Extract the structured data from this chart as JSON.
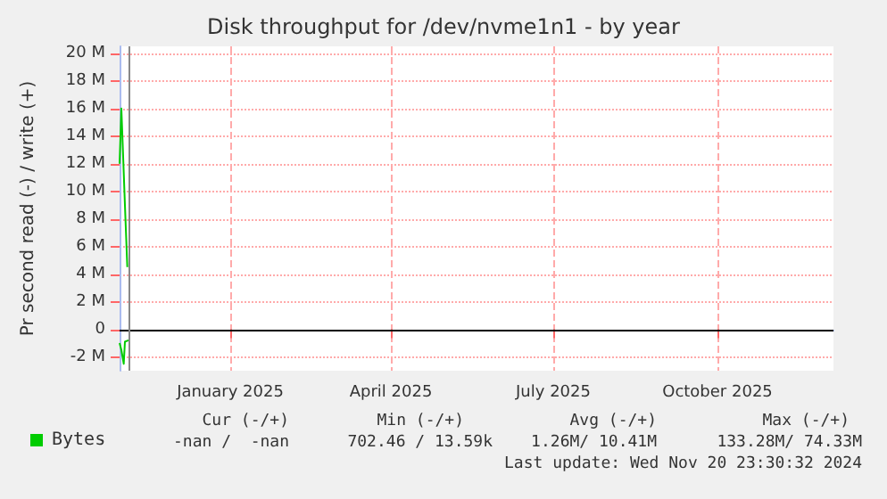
{
  "chart_data": {
    "type": "line",
    "title": "Disk throughput for /dev/nvme1n1 - by year",
    "ylabel": "Pr second read (-) / write (+)",
    "series": [
      {
        "name": "Bytes",
        "color": "#00cc00",
        "x": [
          "2024-10-31T00:00",
          "2024-11-01T00:00",
          "2024-11-03T00:00",
          "2024-11-04T08:00"
        ],
        "values": [
          12,
          16,
          9,
          4.5
        ]
      },
      {
        "color": "#00cc00",
        "x": [
          "2024-10-31T00:00",
          "2024-11-01T00:00",
          "2024-11-02T08:00",
          "2024-11-03T00:00",
          "2024-11-05T00:00"
        ],
        "values": [
          -1,
          -1.5,
          -2.5,
          -0.9,
          -0.8
        ]
      }
    ],
    "xlim": [
      "2024-10-31",
      "2025-12-05"
    ],
    "xticks": [
      {
        "value": "2025-01-01",
        "label": "January 2025"
      },
      {
        "value": "2025-04-01",
        "label": "April 2025"
      },
      {
        "value": "2025-07-01",
        "label": "July 2025"
      },
      {
        "value": "2025-10-01",
        "label": "October 2025"
      }
    ],
    "ylim": [
      -3,
      20.5
    ],
    "yticks": [
      {
        "value": -2,
        "label": "-2 M"
      },
      0,
      {
        "value": 2,
        "label": "2 M"
      },
      {
        "value": 4,
        "label": "4 M"
      },
      {
        "value": 6,
        "label": "6 M"
      },
      {
        "value": 8,
        "label": "8 M"
      },
      {
        "value": 10,
        "label": "10 M"
      },
      {
        "value": 12,
        "label": "12 M"
      },
      {
        "value": 14,
        "label": "14 M"
      },
      {
        "value": 16,
        "label": "16 M"
      },
      {
        "value": 18,
        "label": "18 M"
      },
      {
        "value": 20,
        "label": "20 M"
      }
    ],
    "ref_lines": [
      {
        "axis": "y",
        "value": 0,
        "color": "#000000"
      },
      {
        "axis": "x",
        "value": "2024-11-05",
        "color": "#888888"
      }
    ],
    "grid": true,
    "legend": "bottom left",
    "marker": "none",
    "line_style": "solid",
    "annotations": [
      "Cur (-/+)",
      "Min (-/+)",
      "Avg (-/+)",
      "Max (-/+)",
      "-nan /  -nan",
      "702.46 / 13.59k",
      "1.26M/ 10.41M",
      "133.28M/ 74.33M",
      "Last update: Wed Nov 20 23:30:32 2024"
    ]
  }
}
